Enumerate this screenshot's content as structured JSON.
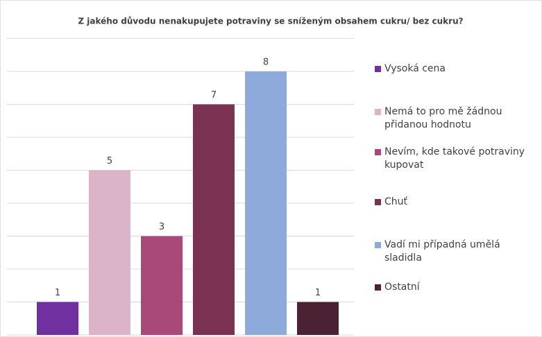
{
  "chart_data": {
    "type": "bar",
    "title": "Z jakého důvodu nenakupujete potraviny se sníženým obsahem cukru/ bez cukru?",
    "categories": [
      "Vysoká cena",
      "Nemá to pro mě žádnou přidanou hodnotu",
      "Nevím, kde takové potraviny kupovat",
      "Chuť",
      "Vadí mi případná umělá sladidla",
      "Ostatní"
    ],
    "values": [
      1,
      5,
      3,
      7,
      8,
      1
    ],
    "colors": [
      "#7030a0",
      "#dcb4c9",
      "#a8497a",
      "#7a3152",
      "#8eaadb",
      "#4b2233"
    ],
    "ylim": [
      0,
      9
    ],
    "yticks": [
      0,
      1,
      2,
      3,
      4,
      5,
      6,
      7,
      8,
      9
    ],
    "grid": true,
    "legend": "right"
  }
}
